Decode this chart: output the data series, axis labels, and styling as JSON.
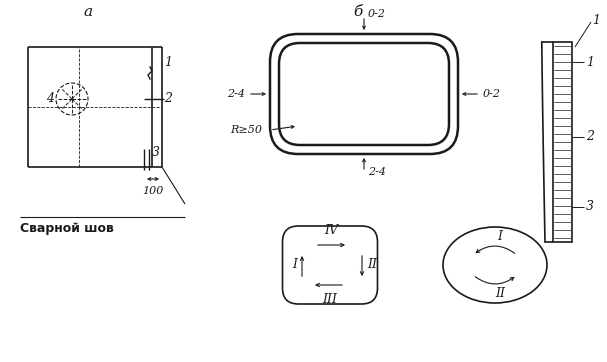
{
  "bg_color": "#ffffff",
  "line_color": "#1a1a1a",
  "label_a": "a",
  "label_b": "б",
  "svarnoj_shov": "Сварной шов",
  "dim_100": "100",
  "label_R50": "R≥50",
  "label_02_top": "0-2",
  "label_02_right": "0-2",
  "label_24_left": "2-4",
  "label_24_bottom": "2-4",
  "label_I_sq": "I",
  "label_II_sq": "II",
  "label_III_sq": "III",
  "label_IV_sq": "IV",
  "label_I_oval": "I",
  "label_II_oval": "II",
  "label_1": "1",
  "label_2": "2",
  "label_3": "3",
  "label_4": "4",
  "label_1r": "1",
  "label_2r": "2",
  "label_3r": "3"
}
